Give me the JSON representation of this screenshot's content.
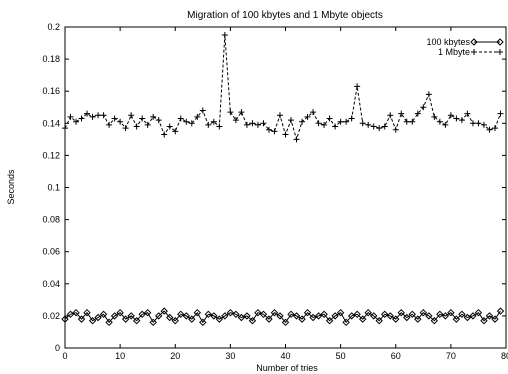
{
  "chart_data": {
    "type": "line",
    "title": "Migration of 100 kbytes and 1 Mbyte objects",
    "xlabel": "Number of tries",
    "ylabel": "Seconds",
    "xlim": [
      0,
      80
    ],
    "ylim": [
      0,
      0.2
    ],
    "x_ticks": [
      0,
      10,
      20,
      30,
      40,
      50,
      60,
      70,
      80
    ],
    "x_tick_labels": [
      "0",
      "10",
      "20",
      "30",
      "40",
      "50",
      "60",
      "70",
      "80"
    ],
    "y_ticks": [
      0,
      0.02,
      0.04,
      0.06,
      0.08,
      0.1,
      0.12,
      0.14,
      0.16,
      0.18,
      0.2
    ],
    "y_tick_labels": [
      "0",
      "0.02",
      "0.04",
      "0.06",
      "0.08",
      "0.1",
      "0.12",
      "0.14",
      "0.16",
      "0.18",
      "0.2"
    ],
    "grid": false,
    "legend_position": "top-right",
    "series": [
      {
        "name": "100 kbytes",
        "line_style": "solid",
        "marker": "diamond",
        "x": [
          0,
          1,
          2,
          3,
          4,
          5,
          6,
          7,
          8,
          9,
          10,
          11,
          12,
          13,
          14,
          15,
          16,
          17,
          18,
          19,
          20,
          21,
          22,
          23,
          24,
          25,
          26,
          27,
          28,
          29,
          30,
          31,
          32,
          33,
          34,
          35,
          36,
          37,
          38,
          39,
          40,
          41,
          42,
          43,
          44,
          45,
          46,
          47,
          48,
          49,
          50,
          51,
          52,
          53,
          54,
          55,
          56,
          57,
          58,
          59,
          60,
          61,
          62,
          63,
          64,
          65,
          66,
          67,
          68,
          69,
          70,
          71,
          72,
          73,
          74,
          75,
          76,
          77,
          78,
          79
        ],
        "y": [
          0.018,
          0.021,
          0.022,
          0.018,
          0.022,
          0.017,
          0.019,
          0.021,
          0.016,
          0.02,
          0.022,
          0.018,
          0.02,
          0.017,
          0.021,
          0.022,
          0.016,
          0.02,
          0.023,
          0.019,
          0.017,
          0.021,
          0.02,
          0.018,
          0.022,
          0.016,
          0.021,
          0.02,
          0.018,
          0.02,
          0.022,
          0.021,
          0.019,
          0.02,
          0.017,
          0.022,
          0.021,
          0.018,
          0.022,
          0.02,
          0.016,
          0.021,
          0.02,
          0.018,
          0.022,
          0.019,
          0.02,
          0.021,
          0.017,
          0.02,
          0.022,
          0.016,
          0.02,
          0.021,
          0.018,
          0.022,
          0.02,
          0.017,
          0.021,
          0.02,
          0.018,
          0.022,
          0.019,
          0.021,
          0.018,
          0.022,
          0.02,
          0.017,
          0.021,
          0.02,
          0.022,
          0.018,
          0.021,
          0.019,
          0.02,
          0.022,
          0.017,
          0.02,
          0.018,
          0.023
        ]
      },
      {
        "name": "1 Mbyte",
        "line_style": "dashed",
        "marker": "plus",
        "x": [
          0,
          1,
          2,
          3,
          4,
          5,
          6,
          7,
          8,
          9,
          10,
          11,
          12,
          13,
          14,
          15,
          16,
          17,
          18,
          19,
          20,
          21,
          22,
          23,
          24,
          25,
          26,
          27,
          28,
          29,
          30,
          31,
          32,
          33,
          34,
          35,
          36,
          37,
          38,
          39,
          40,
          41,
          42,
          43,
          44,
          45,
          46,
          47,
          48,
          49,
          50,
          51,
          52,
          53,
          54,
          55,
          56,
          57,
          58,
          59,
          60,
          61,
          62,
          63,
          64,
          65,
          66,
          67,
          68,
          69,
          70,
          71,
          72,
          73,
          74,
          75,
          76,
          77,
          78,
          79
        ],
        "y": [
          0.137,
          0.144,
          0.141,
          0.143,
          0.146,
          0.144,
          0.145,
          0.145,
          0.139,
          0.143,
          0.141,
          0.137,
          0.145,
          0.138,
          0.143,
          0.139,
          0.144,
          0.142,
          0.133,
          0.138,
          0.135,
          0.143,
          0.141,
          0.14,
          0.144,
          0.148,
          0.139,
          0.141,
          0.138,
          0.195,
          0.147,
          0.142,
          0.147,
          0.139,
          0.14,
          0.139,
          0.14,
          0.136,
          0.135,
          0.145,
          0.133,
          0.142,
          0.13,
          0.141,
          0.144,
          0.147,
          0.14,
          0.139,
          0.143,
          0.138,
          0.141,
          0.141,
          0.143,
          0.163,
          0.14,
          0.139,
          0.138,
          0.137,
          0.138,
          0.145,
          0.136,
          0.146,
          0.141,
          0.141,
          0.146,
          0.15,
          0.158,
          0.144,
          0.141,
          0.139,
          0.145,
          0.143,
          0.142,
          0.146,
          0.14,
          0.14,
          0.139,
          0.136,
          0.137,
          0.146
        ]
      }
    ]
  }
}
